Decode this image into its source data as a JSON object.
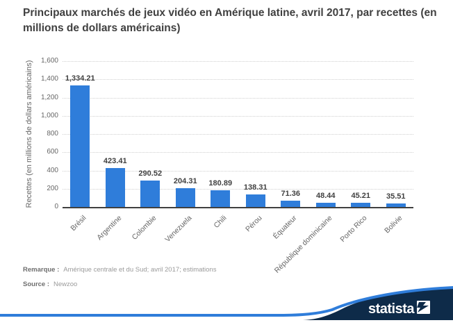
{
  "chart_data": {
    "type": "bar",
    "title": "Principaux marchés de jeux vidéo en Amérique latine, avril 2017, par recettes (en millions de dollars américains)",
    "categories": [
      "Brésil",
      "Argentine",
      "Colombie",
      "Venezuela",
      "Chili",
      "Pérou",
      "Équateur",
      "République dominicaine",
      "Porto Rico",
      "Bolivie"
    ],
    "values": [
      1334.21,
      423.41,
      290.52,
      204.31,
      180.89,
      138.31,
      71.36,
      48.44,
      45.21,
      35.51
    ],
    "value_labels": [
      "1,334.21",
      "423.41",
      "290.52",
      "204.31",
      "180.89",
      "138.31",
      "71.36",
      "48.44",
      "45.21",
      "35.51"
    ],
    "xlabel": "",
    "ylabel": "Recettes (en millions de dollars américains)",
    "ylim": [
      0,
      1600
    ],
    "ytick_interval": 200,
    "ytick_labels": [
      "0",
      "200",
      "400",
      "600",
      "800",
      "1,000",
      "1,200",
      "1,400",
      "1,600"
    ],
    "grid": "horizontal-dotted",
    "legend": "none",
    "bar_color": "#2f7dda"
  },
  "footer": {
    "note_label": "Remarque :",
    "note_text": "Amérique centrale et du Sud; avril 2017; estimations",
    "source_label": "Source :",
    "source_text": "Newzoo"
  },
  "branding": {
    "logo_text": "statista",
    "navy": "#0e2b49",
    "swoosh_blue": "#2f7dda",
    "logo_text_color": "#ffffff"
  }
}
